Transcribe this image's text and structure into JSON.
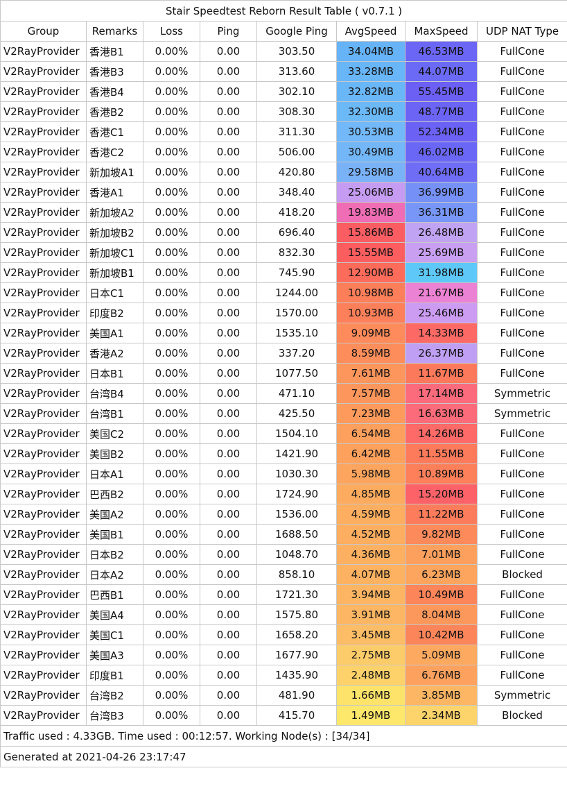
{
  "title": "Stair Speedtest Reborn Result Table ( v0.7.1 )",
  "columns": [
    "Group",
    "Remarks",
    "Loss",
    "Ping",
    "Google Ping",
    "AvgSpeed",
    "MaxSpeed",
    "UDP NAT Type"
  ],
  "rows": [
    {
      "group": "V2RayProvider",
      "remarks": "香港B1",
      "loss": "0.00%",
      "ping": "0.00",
      "gping": "303.50",
      "avg": "34.04MB",
      "max": "46.53MB",
      "nat": "FullCone",
      "avg_color": "#66b3f8",
      "max_color": "#6b66f6"
    },
    {
      "group": "V2RayProvider",
      "remarks": "香港B3",
      "loss": "0.00%",
      "ping": "0.00",
      "gping": "313.60",
      "avg": "33.28MB",
      "max": "44.07MB",
      "nat": "FullCone",
      "avg_color": "#68b5f8",
      "max_color": "#6b6af7"
    },
    {
      "group": "V2RayProvider",
      "remarks": "香港B4",
      "loss": "0.00%",
      "ping": "0.00",
      "gping": "302.10",
      "avg": "32.82MB",
      "max": "55.45MB",
      "nat": "FullCone",
      "avg_color": "#6ab7f8",
      "max_color": "#6b5ff4"
    },
    {
      "group": "V2RayProvider",
      "remarks": "香港B2",
      "loss": "0.00%",
      "ping": "0.00",
      "gping": "308.30",
      "avg": "32.30MB",
      "max": "48.77MB",
      "nat": "FullCone",
      "avg_color": "#6cb9f8",
      "max_color": "#6b64f5"
    },
    {
      "group": "V2RayProvider",
      "remarks": "香港C1",
      "loss": "0.00%",
      "ping": "0.00",
      "gping": "311.30",
      "avg": "30.53MB",
      "max": "52.34MB",
      "nat": "FullCone",
      "avg_color": "#73b8f8",
      "max_color": "#6b62f5"
    },
    {
      "group": "V2RayProvider",
      "remarks": "香港C2",
      "loss": "0.00%",
      "ping": "0.00",
      "gping": "506.00",
      "avg": "30.49MB",
      "max": "46.02MB",
      "nat": "FullCone",
      "avg_color": "#74b7f8",
      "max_color": "#6b67f6"
    },
    {
      "group": "V2RayProvider",
      "remarks": "新加坡A1",
      "loss": "0.00%",
      "ping": "0.00",
      "gping": "420.80",
      "avg": "29.58MB",
      "max": "40.64MB",
      "nat": "FullCone",
      "avg_color": "#7ab2f8",
      "max_color": "#6f6cf6"
    },
    {
      "group": "V2RayProvider",
      "remarks": "香港A1",
      "loss": "0.00%",
      "ping": "0.00",
      "gping": "348.40",
      "avg": "25.06MB",
      "max": "36.99MB",
      "nat": "FullCone",
      "avg_color": "#c69cf2",
      "max_color": "#7590f7"
    },
    {
      "group": "V2RayProvider",
      "remarks": "新加坡A2",
      "loss": "0.00%",
      "ping": "0.00",
      "gping": "418.20",
      "avg": "19.83MB",
      "max": "36.31MB",
      "nat": "FullCone",
      "avg_color": "#ee6db4",
      "max_color": "#7896f7"
    },
    {
      "group": "V2RayProvider",
      "remarks": "新加坡B2",
      "loss": "0.00%",
      "ping": "0.00",
      "gping": "696.40",
      "avg": "15.86MB",
      "max": "26.48MB",
      "nat": "FullCone",
      "avg_color": "#fc5d63",
      "max_color": "#c1a3f3"
    },
    {
      "group": "V2RayProvider",
      "remarks": "新加坡C1",
      "loss": "0.00%",
      "ping": "0.00",
      "gping": "832.30",
      "avg": "15.55MB",
      "max": "25.69MB",
      "nat": "FullCone",
      "avg_color": "#fc5e60",
      "max_color": "#c99ff2"
    },
    {
      "group": "V2RayProvider",
      "remarks": "新加坡B1",
      "loss": "0.00%",
      "ping": "0.00",
      "gping": "745.90",
      "avg": "12.90MB",
      "max": "31.98MB",
      "nat": "FullCone",
      "avg_color": "#fd6b5b",
      "max_color": "#5ec9f9"
    },
    {
      "group": "V2RayProvider",
      "remarks": "日本C1",
      "loss": "0.00%",
      "ping": "0.00",
      "gping": "1244.00",
      "avg": "10.98MB",
      "max": "21.67MB",
      "nat": "FullCone",
      "avg_color": "#fd7f5a",
      "max_color": "#ec82d3"
    },
    {
      "group": "V2RayProvider",
      "remarks": "印度B2",
      "loss": "0.00%",
      "ping": "0.00",
      "gping": "1570.00",
      "avg": "10.93MB",
      "max": "25.46MB",
      "nat": "FullCone",
      "avg_color": "#fd805a",
      "max_color": "#cc9cf2"
    },
    {
      "group": "V2RayProvider",
      "remarks": "美国A1",
      "loss": "0.00%",
      "ping": "0.00",
      "gping": "1535.10",
      "avg": "9.09MB",
      "max": "14.33MB",
      "nat": "FullCone",
      "avg_color": "#fd8b5b",
      "max_color": "#fd6a66"
    },
    {
      "group": "V2RayProvider",
      "remarks": "香港A2",
      "loss": "0.00%",
      "ping": "0.00",
      "gping": "337.20",
      "avg": "8.59MB",
      "max": "26.37MB",
      "nat": "FullCone",
      "avg_color": "#fd8e5b",
      "max_color": "#bf9ff3"
    },
    {
      "group": "V2RayProvider",
      "remarks": "日本B1",
      "loss": "0.00%",
      "ping": "0.00",
      "gping": "1077.50",
      "avg": "7.61MB",
      "max": "11.67MB",
      "nat": "FullCone",
      "avg_color": "#fd965c",
      "max_color": "#fd795b"
    },
    {
      "group": "V2RayProvider",
      "remarks": "台湾B4",
      "loss": "0.00%",
      "ping": "0.00",
      "gping": "471.10",
      "avg": "7.57MB",
      "max": "17.14MB",
      "nat": "Symmetric",
      "avg_color": "#fd965c",
      "max_color": "#fc6b7c"
    },
    {
      "group": "V2RayProvider",
      "remarks": "台湾B1",
      "loss": "0.00%",
      "ping": "0.00",
      "gping": "425.50",
      "avg": "7.23MB",
      "max": "16.63MB",
      "nat": "Symmetric",
      "avg_color": "#fd9a5c",
      "max_color": "#fc6b79"
    },
    {
      "group": "V2RayProvider",
      "remarks": "美国C2",
      "loss": "0.00%",
      "ping": "0.00",
      "gping": "1504.10",
      "avg": "6.54MB",
      "max": "14.26MB",
      "nat": "FullCone",
      "avg_color": "#fda05d",
      "max_color": "#fd6a68"
    },
    {
      "group": "V2RayProvider",
      "remarks": "美国B2",
      "loss": "0.00%",
      "ping": "0.00",
      "gping": "1421.90",
      "avg": "6.42MB",
      "max": "11.55MB",
      "nat": "FullCone",
      "avg_color": "#fda15d",
      "max_color": "#fd7a5b"
    },
    {
      "group": "V2RayProvider",
      "remarks": "日本A1",
      "loss": "0.00%",
      "ping": "0.00",
      "gping": "1030.30",
      "avg": "5.98MB",
      "max": "10.89MB",
      "nat": "FullCone",
      "avg_color": "#fda55e",
      "max_color": "#fd805a"
    },
    {
      "group": "V2RayProvider",
      "remarks": "巴西B2",
      "loss": "0.00%",
      "ping": "0.00",
      "gping": "1724.90",
      "avg": "4.85MB",
      "max": "15.20MB",
      "nat": "FullCone",
      "avg_color": "#fdac5f",
      "max_color": "#fd6269"
    },
    {
      "group": "V2RayProvider",
      "remarks": "美国A2",
      "loss": "0.00%",
      "ping": "0.00",
      "gping": "1536.00",
      "avg": "4.59MB",
      "max": "11.22MB",
      "nat": "FullCone",
      "avg_color": "#fdae60",
      "max_color": "#fd7c5b"
    },
    {
      "group": "V2RayProvider",
      "remarks": "美国B1",
      "loss": "0.00%",
      "ping": "0.00",
      "gping": "1688.50",
      "avg": "4.52MB",
      "max": "9.82MB",
      "nat": "FullCone",
      "avg_color": "#fdae60",
      "max_color": "#fd8a5b"
    },
    {
      "group": "V2RayProvider",
      "remarks": "日本B2",
      "loss": "0.00%",
      "ping": "0.00",
      "gping": "1048.70",
      "avg": "4.36MB",
      "max": "7.01MB",
      "nat": "FullCone",
      "avg_color": "#fdb061",
      "max_color": "#fda05d"
    },
    {
      "group": "V2RayProvider",
      "remarks": "日本A2",
      "loss": "0.00%",
      "ping": "0.00",
      "gping": "858.10",
      "avg": "4.07MB",
      "max": "6.23MB",
      "nat": "Blocked",
      "avg_color": "#fdb262",
      "max_color": "#fda55e"
    },
    {
      "group": "V2RayProvider",
      "remarks": "巴西B1",
      "loss": "0.00%",
      "ping": "0.00",
      "gping": "1721.30",
      "avg": "3.94MB",
      "max": "10.49MB",
      "nat": "FullCone",
      "avg_color": "#fdb563",
      "max_color": "#fd855a"
    },
    {
      "group": "V2RayProvider",
      "remarks": "美国A4",
      "loss": "0.00%",
      "ping": "0.00",
      "gping": "1575.80",
      "avg": "3.91MB",
      "max": "8.04MB",
      "nat": "FullCone",
      "avg_color": "#fdb663",
      "max_color": "#fd985c"
    },
    {
      "group": "V2RayProvider",
      "remarks": "美国C1",
      "loss": "0.00%",
      "ping": "0.00",
      "gping": "1658.20",
      "avg": "3.45MB",
      "max": "10.42MB",
      "nat": "FullCone",
      "avg_color": "#fdbd66",
      "max_color": "#fd855a"
    },
    {
      "group": "V2RayProvider",
      "remarks": "美国A3",
      "loss": "0.00%",
      "ping": "0.00",
      "gping": "1677.90",
      "avg": "2.75MB",
      "max": "5.09MB",
      "nat": "FullCone",
      "avg_color": "#fdcc6a",
      "max_color": "#fda95f"
    },
    {
      "group": "V2RayProvider",
      "remarks": "印度B1",
      "loss": "0.00%",
      "ping": "0.00",
      "gping": "1435.90",
      "avg": "2.48MB",
      "max": "6.76MB",
      "nat": "FullCone",
      "avg_color": "#fdd26b",
      "max_color": "#fda25e"
    },
    {
      "group": "V2RayProvider",
      "remarks": "台湾B2",
      "loss": "0.00%",
      "ping": "0.00",
      "gping": "481.90",
      "avg": "1.66MB",
      "max": "3.85MB",
      "nat": "Symmetric",
      "avg_color": "#fee36b",
      "max_color": "#fdb663"
    },
    {
      "group": "V2RayProvider",
      "remarks": "台湾B3",
      "loss": "0.00%",
      "ping": "0.00",
      "gping": "415.70",
      "avg": "1.49MB",
      "max": "2.34MB",
      "nat": "Blocked",
      "avg_color": "#fee86b",
      "max_color": "#fdd46b"
    }
  ],
  "footer": {
    "traffic": "Traffic used : 4.33GB. Time used : 00:12:57. Working Node(s) : [34/34]",
    "generated": "Generated at 2021-04-26 23:17:47"
  }
}
